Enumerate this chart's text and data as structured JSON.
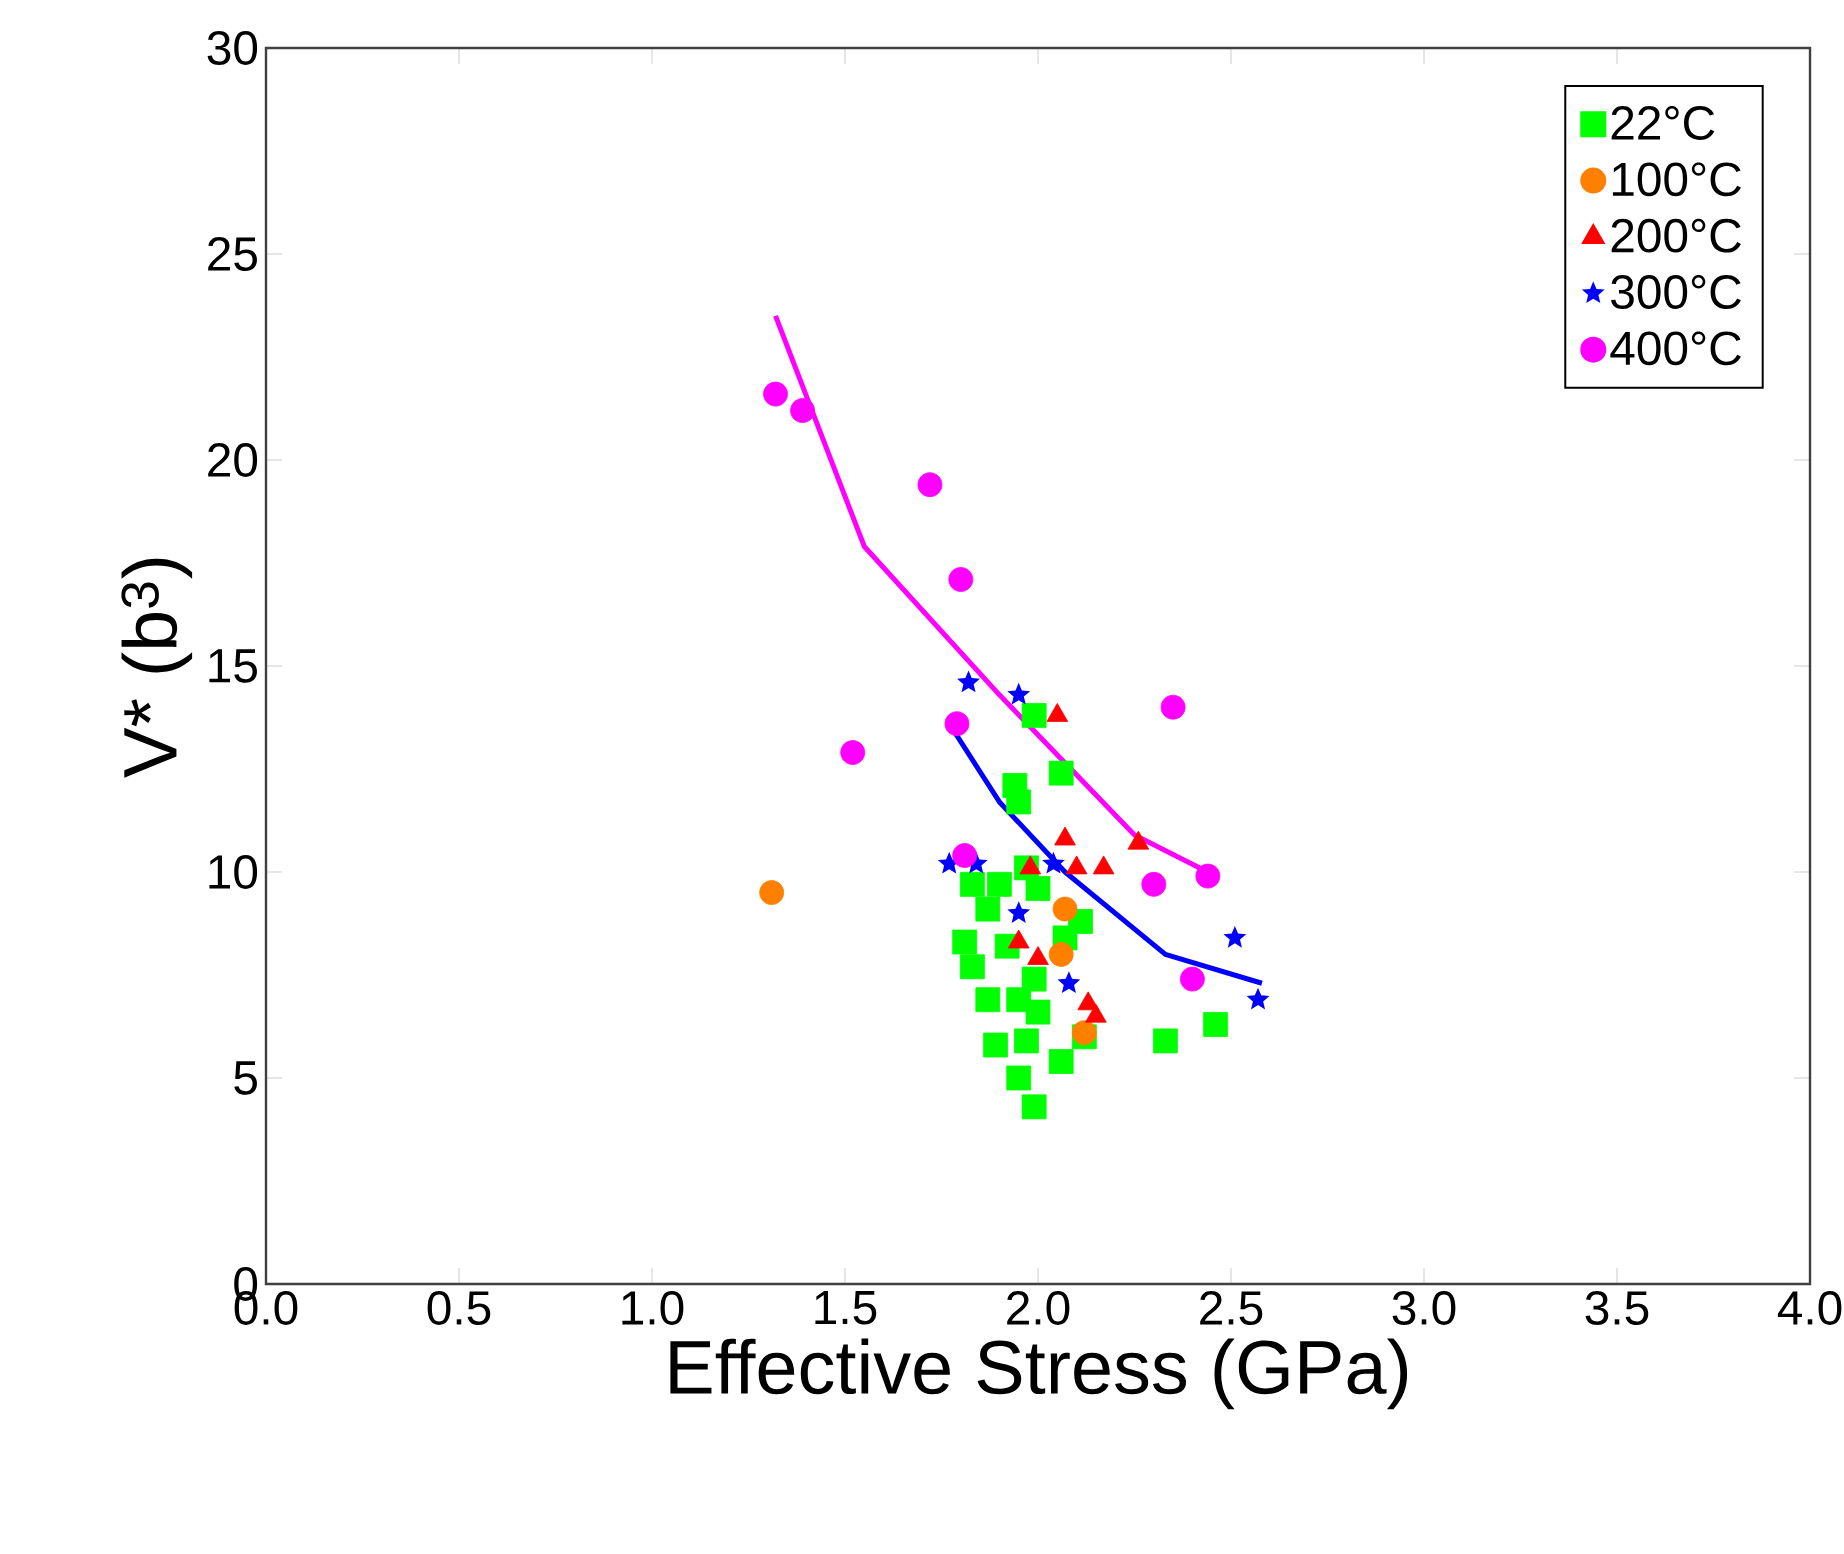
{
  "chart_data": {
    "type": "scatter",
    "xlabel": "Effective Stress (GPa)",
    "ylabel": "V* (b$^{3}$)",
    "xlim": [
      0,
      4
    ],
    "ylim": [
      0,
      30
    ],
    "xticks": [
      {
        "value": 0,
        "label": "0.0"
      },
      {
        "value": 0.5,
        "label": "0.5"
      },
      {
        "value": 1,
        "label": "1.0"
      },
      {
        "value": 1.5,
        "label": "1.5"
      },
      {
        "value": 2,
        "label": "2.0"
      },
      {
        "value": 2.5,
        "label": "2.5"
      },
      {
        "value": 3,
        "label": "3.0"
      },
      {
        "value": 3.5,
        "label": "3.5"
      },
      {
        "value": 4,
        "label": "4.0"
      }
    ],
    "yticks": [
      0,
      5,
      10,
      15,
      20,
      25,
      30
    ],
    "legend": "top right",
    "series": [
      {
        "name": "22°C",
        "color": "#00ff00",
        "marker": "square",
        "x": [
          1.99,
          2.06,
          1.94,
          1.95,
          1.97,
          1.83,
          1.9,
          2.0,
          1.87,
          2.11,
          1.81,
          1.92,
          2.07,
          1.83,
          1.87,
          1.95,
          2.0,
          1.89,
          1.97,
          2.06,
          1.95,
          1.99,
          2.33,
          2.46,
          2.12,
          1.99
        ],
        "values": [
          13.8,
          12.4,
          12.1,
          11.7,
          10.1,
          9.7,
          9.7,
          9.6,
          9.1,
          8.8,
          8.3,
          8.2,
          8.4,
          7.7,
          6.9,
          6.9,
          6.6,
          5.8,
          5.9,
          5.4,
          5.0,
          4.3,
          5.9,
          6.3,
          6.0,
          7.4
        ]
      },
      {
        "name": "100°C",
        "color": "#ff8000",
        "marker": "circle",
        "x": [
          1.31,
          2.07,
          2.06,
          2.12
        ],
        "values": [
          9.5,
          9.1,
          8.0,
          6.1
        ]
      },
      {
        "name": "200°C",
        "color": "#ff0000",
        "marker": "triangle",
        "x": [
          2.05,
          2.07,
          1.98,
          2.1,
          2.17,
          2.26,
          1.95,
          2.0,
          2.13,
          2.15
        ],
        "values": [
          13.8,
          10.8,
          10.1,
          10.1,
          10.1,
          10.7,
          8.3,
          7.9,
          6.8,
          6.5
        ]
      },
      {
        "name": "300°C",
        "color": "#0000ff",
        "marker": "star",
        "x": [
          1.82,
          1.95,
          1.77,
          1.84,
          1.95,
          2.04,
          2.08,
          2.51,
          2.57
        ],
        "values": [
          14.6,
          14.3,
          10.2,
          10.2,
          9.0,
          10.2,
          7.3,
          8.4,
          6.9
        ]
      },
      {
        "name": "400°C",
        "color": "#ff00ff",
        "marker": "circle",
        "x": [
          1.32,
          1.39,
          1.72,
          1.8,
          1.52,
          1.79,
          2.35,
          1.81,
          2.3,
          2.44,
          2.4
        ],
        "values": [
          21.6,
          21.2,
          19.4,
          17.1,
          12.9,
          13.6,
          14.0,
          10.4,
          9.7,
          9.9,
          7.4
        ]
      },
      {
        "type": "line",
        "color": "#0000ff",
        "marker": "none",
        "x": [
          1.77,
          1.9,
          2.07,
          2.33,
          2.58
        ],
        "values": [
          13.6,
          11.7,
          10.0,
          8.0,
          7.3
        ]
      },
      {
        "type": "line",
        "color": "#ff00ff",
        "marker": "none",
        "x": [
          1.32,
          1.55,
          1.9,
          2.25,
          2.45
        ],
        "values": [
          23.5,
          17.9,
          14.3,
          10.9,
          9.95
        ]
      }
    ]
  }
}
